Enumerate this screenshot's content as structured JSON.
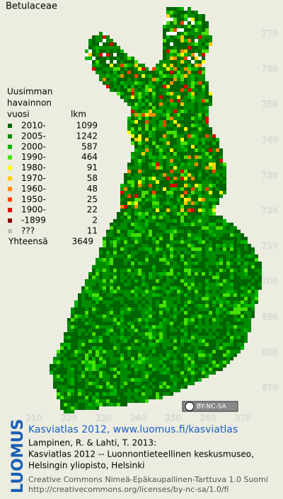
{
  "header": {
    "title": "Betulaceae"
  },
  "legend": {
    "heading": [
      "Uusimman",
      "havainnon",
      "vuosi"
    ],
    "count_heading": "lkm",
    "rows": [
      {
        "label": "2010-",
        "count": 1099,
        "color": "#006400"
      },
      {
        "label": "2005-",
        "count": 1242,
        "color": "#008c00"
      },
      {
        "label": "2000-",
        "count": 587,
        "color": "#00b400"
      },
      {
        "label": "1990-",
        "count": 464,
        "color": "#44e000"
      },
      {
        "label": "1980-",
        "count": 91,
        "color": "#ffff00"
      },
      {
        "label": "1970-",
        "count": 58,
        "color": "#ffcc00"
      },
      {
        "label": "1960-",
        "count": 48,
        "color": "#ff8c00"
      },
      {
        "label": "1950-",
        "count": 25,
        "color": "#ff4400"
      },
      {
        "label": "1900-",
        "count": 22,
        "color": "#dd0000"
      },
      {
        "label": "-1899",
        "count": 2,
        "color": "#880000"
      },
      {
        "label": "???",
        "count": 11,
        "color": "#c0c0c0"
      }
    ],
    "total_label": "Yhteensä",
    "total": 3649
  },
  "grid": {
    "x_labels": [
      310,
      320,
      330,
      340,
      350,
      360,
      370
    ],
    "y_labels": [
      770,
      760,
      750,
      740,
      730,
      720,
      710,
      700,
      690,
      680,
      670
    ]
  },
  "badge": "BY-NC-SA",
  "footer": {
    "logo": "LUOMUS",
    "link": "Kasviatlas 2012, www.luomus.fi/kasviatlas",
    "citation": [
      "Lampinen, R. & Lahti, T. 2013:",
      "Kasviatlas 2012 -- Luonnontieteellinen keskusmuseo,",
      "Helsingin yliopisto, Helsinki"
    ],
    "license": [
      "Creative Commons Nimeä-Epäkaupallinen-Tarttuva 1.0 Suomi",
      "http://creativecommons.org/licenses/by-nc-sa/1.0/fi"
    ]
  }
}
